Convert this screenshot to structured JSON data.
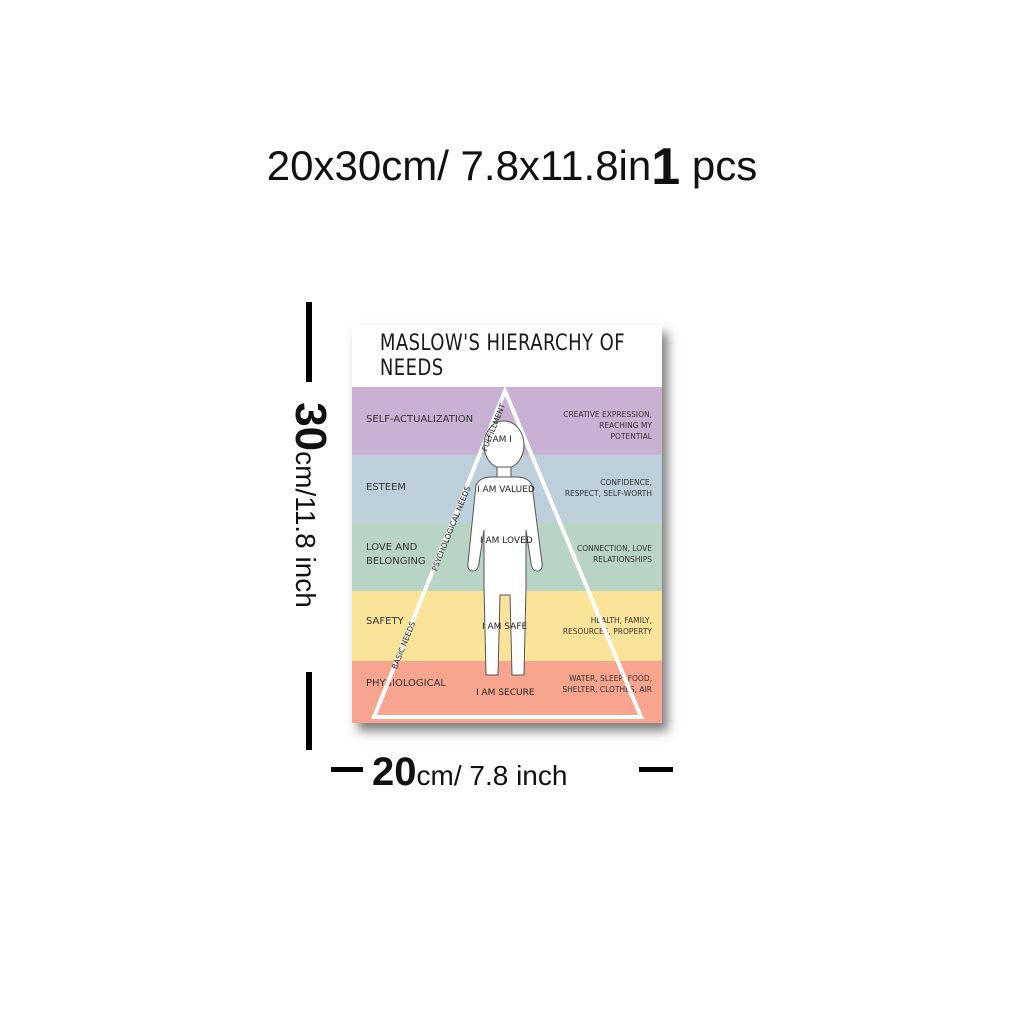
{
  "heading": {
    "size": "20x30cm/ 7.8x11.8in",
    "qty_number": "1",
    "qty_unit": "pcs"
  },
  "dimensions": {
    "height_value": "30",
    "height_unit": "cm/11.8 inch",
    "width_value": "20",
    "width_unit": "cm/ 7.8 inch"
  },
  "poster": {
    "title": "MASLOW'S HIERARCHY OF NEEDS",
    "levels": [
      {
        "label": "SELF-ACTUALIZATION",
        "desc": "CREATIVE EXPRESSION, REACHING MY POTENTIAL",
        "color": "#c9b1d4"
      },
      {
        "label": "ESTEEM",
        "desc": "CONFIDENCE, RESPECT, SELF-WORTH",
        "color": "#bccfdb"
      },
      {
        "label": "LOVE AND BELONGING",
        "desc": "CONNECTION, LOVE RELATIONSHIPS",
        "color": "#b9d3c4"
      },
      {
        "label": "SAFETY",
        "desc": "HEALTH, FAMILY, RESOURCES, PROPERTY",
        "color": "#fbe39a"
      },
      {
        "label": "PHYSIOLOGICAL",
        "desc": "WATER, SLEEP, FOOD, SHELTER, CLOTHES, AIR",
        "color": "#f7a58e"
      }
    ],
    "figure_labels": [
      "I AM I",
      "I AM VALUED",
      "I AM LOVED",
      "I AM SAFE",
      "I AM SECURE"
    ],
    "side_labels": [
      "FULFILLMENT",
      "PSYCHOLOGICAL NEEDS",
      "BASIC NEEDS"
    ]
  }
}
